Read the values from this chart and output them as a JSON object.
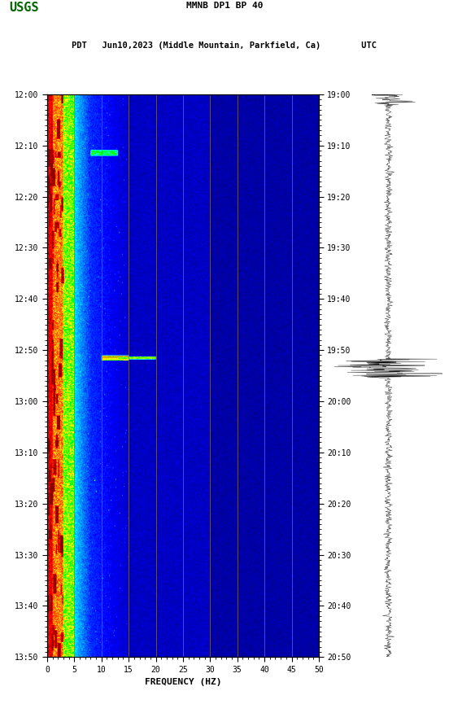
{
  "title_line1": "MMNB DP1 BP 40",
  "title_line2": "PDT   Jun10,2023 (Middle Mountain, Parkfield, Ca)        UTC",
  "freq_min": 0,
  "freq_max": 50,
  "ylabel_left_ticks": [
    "12:00",
    "12:10",
    "12:20",
    "12:30",
    "12:40",
    "12:50",
    "13:00",
    "13:10",
    "13:20",
    "13:30",
    "13:40",
    "13:50"
  ],
  "ylabel_right_ticks": [
    "19:00",
    "19:10",
    "19:20",
    "19:30",
    "19:40",
    "19:50",
    "20:00",
    "20:10",
    "20:20",
    "20:30",
    "20:40",
    "20:50"
  ],
  "xticks": [
    0,
    5,
    10,
    15,
    20,
    25,
    30,
    35,
    40,
    45,
    50
  ],
  "xlabel": "FREQUENCY (HZ)",
  "grid_lines_x": [
    5,
    10,
    15,
    20,
    25,
    30,
    35,
    40,
    45
  ],
  "spectrogram_rows": 570,
  "spectrogram_cols": 500,
  "usgs_logo_color": "#006400",
  "figure_bg": "#ffffff",
  "grid_color": "#8B7355",
  "cmap_colors": [
    [
      0.0,
      "#000033"
    ],
    [
      0.1,
      "#00008B"
    ],
    [
      0.2,
      "#0000FF"
    ],
    [
      0.35,
      "#0080FF"
    ],
    [
      0.5,
      "#00FFFF"
    ],
    [
      0.62,
      "#00FF00"
    ],
    [
      0.74,
      "#FFFF00"
    ],
    [
      0.86,
      "#FF4500"
    ],
    [
      0.93,
      "#FF0000"
    ],
    [
      1.0,
      "#8B0000"
    ]
  ]
}
